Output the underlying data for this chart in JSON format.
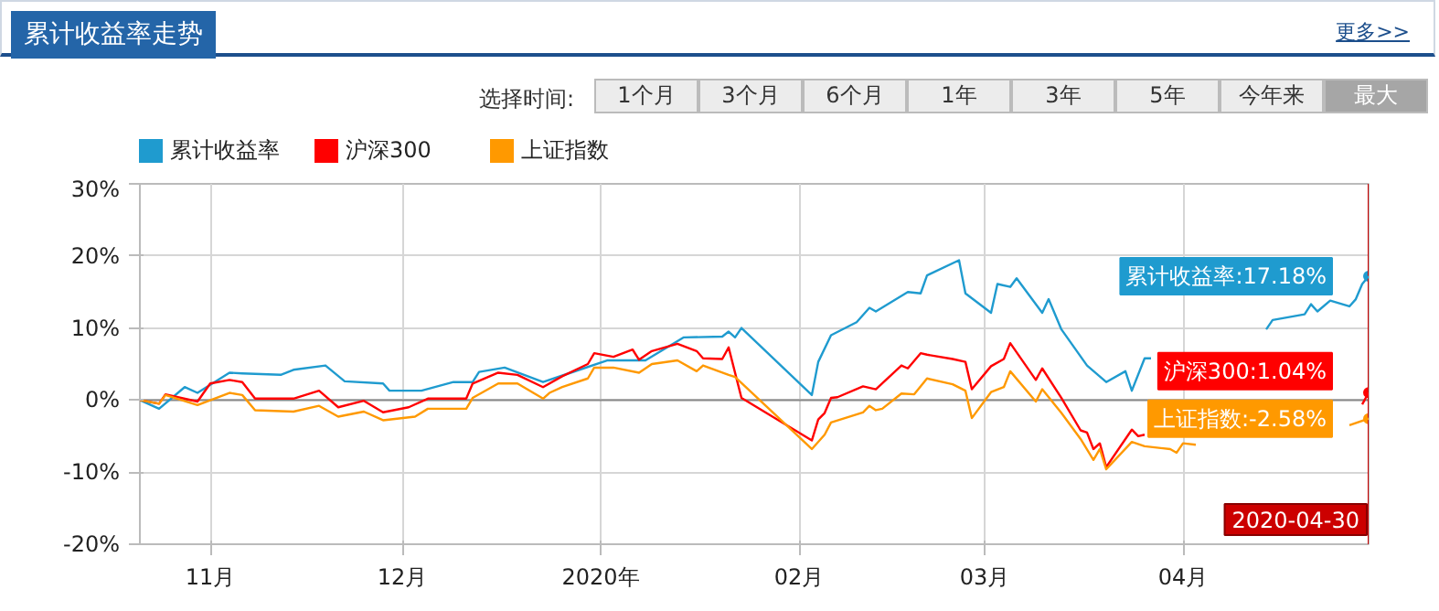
{
  "chart_data": {
    "type": "line",
    "title": "累计收益率走势",
    "annotations": [
      "更多>>",
      "选择时间:",
      "1个月",
      "3个月",
      "6个月",
      "1年",
      "3年",
      "5年",
      "今年来",
      "最大",
      {
        "text": "累计收益率:17.18%",
        "x": "2020-04-30",
        "y": 17.18
      },
      {
        "text": "沪深300:1.04%",
        "x": "2020-04-30",
        "y": 1.04
      },
      {
        "text": "上证指数:-2.58%",
        "x": "2020-04-30",
        "y": -2.58
      }
    ],
    "series": [
      {
        "name": "累计收益率",
        "color": "#1f9bcf",
        "x": [
          "2019-10-21",
          "2019-10-24",
          "2019-10-28",
          "2019-10-30",
          "2019-11-04",
          "2019-11-06",
          "2019-11-12",
          "2019-11-14",
          "2019-11-19",
          "2019-11-22",
          "2019-11-28",
          "2019-11-29",
          "2019-12-04",
          "2019-12-09",
          "2019-12-12",
          "2019-12-13",
          "2019-12-17",
          "2019-12-23",
          "2019-12-27",
          "2020-01-02",
          "2020-01-08",
          "2020-01-14",
          "2020-01-20",
          "2020-01-21",
          "2020-01-22",
          "2020-01-23",
          "2020-02-03",
          "2020-02-04",
          "2020-02-06",
          "2020-02-10",
          "2020-02-12",
          "2020-02-13",
          "2020-02-18",
          "2020-02-20",
          "2020-02-21",
          "2020-02-26",
          "2020-02-27",
          "2020-03-02",
          "2020-03-03",
          "2020-03-05",
          "2020-03-06",
          "2020-03-10",
          "2020-03-11",
          "2020-03-13",
          "2020-03-17",
          "2020-03-20",
          "2020-03-23",
          "2020-03-24",
          "2020-03-26",
          "2020-03-27",
          "2020-03-30",
          "2020-04-14",
          "2020-04-15",
          "2020-04-20",
          "2020-04-21",
          "2020-04-22",
          "2020-04-24",
          "2020-04-27",
          "2020-04-28",
          "2020-04-29",
          "2020-04-30"
        ],
        "values": [
          0,
          -1.2,
          1.8,
          1,
          3.8,
          3.7,
          3.5,
          4.2,
          4.8,
          2.6,
          2.3,
          1.3,
          1.3,
          2.5,
          2.5,
          3.9,
          4.5,
          2.5,
          3.7,
          5.5,
          5.5,
          8.7,
          8.8,
          9.5,
          8.7,
          10,
          0.7,
          5.3,
          9,
          10.8,
          12.8,
          12.3,
          15,
          14.8,
          17.3,
          19.4,
          14.8,
          12.1,
          16.1,
          15.7,
          16.9,
          12.1,
          14,
          9.8,
          4.8,
          2.5,
          4,
          1.3,
          5.8,
          5.8,
          null,
          9.8,
          11.1,
          11.9,
          13.3,
          12.3,
          13.8,
          13,
          14,
          16.1,
          17.18
        ]
      },
      {
        "name": "沪深300",
        "color": "#ff0000",
        "x": [
          "2019-10-21",
          "2019-10-24",
          "2019-10-25",
          "2019-10-30",
          "2019-11-01",
          "2019-11-04",
          "2019-11-06",
          "2019-11-08",
          "2019-11-14",
          "2019-11-18",
          "2019-11-21",
          "2019-11-25",
          "2019-11-28",
          "2019-12-02",
          "2019-12-05",
          "2019-12-11",
          "2019-12-12",
          "2019-12-16",
          "2019-12-19",
          "2019-12-23",
          "2019-12-26",
          "2019-12-30",
          "2019-12-31",
          "2020-01-03",
          "2020-01-06",
          "2020-01-07",
          "2020-01-09",
          "2020-01-13",
          "2020-01-16",
          "2020-01-17",
          "2020-01-20",
          "2020-01-21",
          "2020-01-23",
          "2020-02-03",
          "2020-02-04",
          "2020-02-05",
          "2020-02-06",
          "2020-02-07",
          "2020-02-11",
          "2020-02-13",
          "2020-02-17",
          "2020-02-18",
          "2020-02-20",
          "2020-02-21",
          "2020-02-25",
          "2020-02-27",
          "2020-02-28",
          "2020-03-02",
          "2020-03-04",
          "2020-03-05",
          "2020-03-09",
          "2020-03-10",
          "2020-03-13",
          "2020-03-16",
          "2020-03-17",
          "2020-03-18",
          "2020-03-19",
          "2020-03-20",
          "2020-03-24",
          "2020-03-25",
          "2020-03-26",
          "2020-03-27",
          "2020-04-29",
          "2020-04-30"
        ],
        "values": [
          0,
          -0.5,
          0.8,
          -0.2,
          2.3,
          2.8,
          2.5,
          0.2,
          0.2,
          1.3,
          -1,
          -0.1,
          -1.7,
          -1,
          0.2,
          0.2,
          2.3,
          3.8,
          3.5,
          1.8,
          3.3,
          5,
          6.5,
          6,
          7,
          5.6,
          6.8,
          7.8,
          6.8,
          5.8,
          5.7,
          7.3,
          0.3,
          -5.6,
          -2.7,
          -1.8,
          0.3,
          0.4,
          1.9,
          1.5,
          4.8,
          4.4,
          6.5,
          6.3,
          5.7,
          5.3,
          1.5,
          4.7,
          5.7,
          7.9,
          2.8,
          4.4,
          0.3,
          -4.2,
          -4.5,
          -6.8,
          -6,
          -9.3,
          -4.1,
          -5,
          -4.8,
          null,
          -0.6,
          1.04
        ]
      },
      {
        "name": "上证指数",
        "color": "#ff9900",
        "x": [
          "2019-10-21",
          "2019-10-24",
          "2019-10-25",
          "2019-10-30",
          "2019-11-04",
          "2019-11-06",
          "2019-11-08",
          "2019-11-14",
          "2019-11-18",
          "2019-11-21",
          "2019-11-25",
          "2019-11-28",
          "2019-12-03",
          "2019-12-05",
          "2019-12-11",
          "2019-12-12",
          "2019-12-16",
          "2019-12-19",
          "2019-12-23",
          "2019-12-24",
          "2019-12-26",
          "2019-12-30",
          "2019-12-31",
          "2020-01-03",
          "2020-01-07",
          "2020-01-09",
          "2020-01-13",
          "2020-01-16",
          "2020-01-17",
          "2020-01-21",
          "2020-01-22",
          "2020-02-03",
          "2020-02-05",
          "2020-02-06",
          "2020-02-11",
          "2020-02-12",
          "2020-02-13",
          "2020-02-14",
          "2020-02-17",
          "2020-02-19",
          "2020-02-21",
          "2020-02-25",
          "2020-02-27",
          "2020-02-28",
          "2020-03-02",
          "2020-03-04",
          "2020-03-05",
          "2020-03-09",
          "2020-03-10",
          "2020-03-13",
          "2020-03-16",
          "2020-03-18",
          "2020-03-19",
          "2020-03-20",
          "2020-03-24",
          "2020-03-26",
          "2020-03-30",
          "2020-03-31",
          "2020-04-01",
          "2020-04-03",
          "2020-04-07",
          "2020-04-27",
          "2020-04-30"
        ],
        "values": [
          0,
          -0.5,
          0.7,
          -0.7,
          1,
          0.7,
          -1.4,
          -1.6,
          -0.8,
          -2.3,
          -1.6,
          -2.8,
          -2.3,
          -1.2,
          -1.2,
          0.3,
          2.3,
          2.3,
          0.2,
          1,
          1.8,
          3,
          4.5,
          4.5,
          3.8,
          5,
          5.5,
          4,
          4.8,
          3.5,
          3.2,
          -6.8,
          -4.8,
          -3.1,
          -1.7,
          -0.8,
          -1.4,
          -1.2,
          0.9,
          0.8,
          3,
          2.2,
          1.3,
          -2.5,
          1.1,
          1.8,
          4,
          -0.2,
          1.5,
          -1.8,
          -5.4,
          -8.3,
          -6.8,
          -9.6,
          -5.8,
          -6.4,
          -6.8,
          -7.3,
          -6,
          -6.2,
          null,
          -3.5,
          -2.58
        ]
      }
    ],
    "xlim": [
      "2019-10-21",
      "2020-04-30"
    ],
    "xticks": [
      {
        "value": "2019-11-01",
        "label": "11月"
      },
      {
        "value": "2019-12-01",
        "label": "12月"
      },
      {
        "value": "2020-01-01",
        "label": "2020年"
      },
      {
        "value": "2020-02-01",
        "label": "02月"
      },
      {
        "value": "2020-03-01",
        "label": "03月"
      },
      {
        "value": "2020-04-01",
        "label": "04月"
      }
    ],
    "ylim": [
      -20,
      30
    ],
    "yticks": [
      {
        "value": -20,
        "label": "-20%"
      },
      {
        "value": -10,
        "label": "-10%"
      },
      {
        "value": 0,
        "label": "0%"
      },
      {
        "value": 10,
        "label": "10%"
      },
      {
        "value": 20,
        "label": "20%"
      },
      {
        "value": 30,
        "label": "30%"
      }
    ],
    "ref_lines": [
      {
        "axis": "y",
        "value": 0,
        "label": null,
        "color": "#888888"
      },
      {
        "axis": "x",
        "value": "2020-04-30",
        "label": "2020-04-30",
        "color": "#cc0000"
      }
    ],
    "grid": true,
    "legend": "top left",
    "marker": "none",
    "line_style": "solid"
  }
}
